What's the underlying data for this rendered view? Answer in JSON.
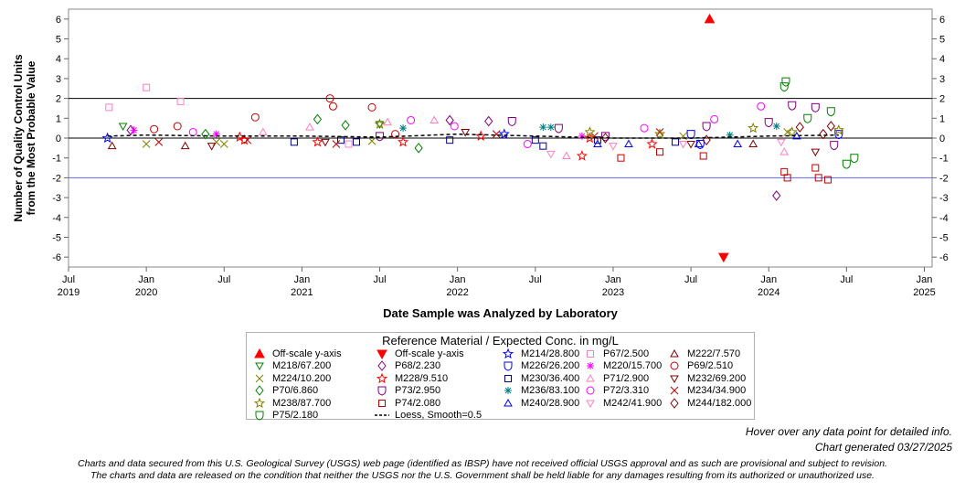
{
  "chart_data": {
    "type": "scatter",
    "ylabel_line1": "Number of Quality Control Units",
    "ylabel_line2": "from the Most Probable Value",
    "xlabel": "Date Sample was Analyzed by Laboratory",
    "ylim": [
      -6.5,
      6.5
    ],
    "yticks": [
      6,
      5,
      4,
      3,
      2,
      1,
      0,
      -1,
      -2,
      -3,
      -4,
      -5,
      -6
    ],
    "ytick_labels": [
      "6",
      "5",
      "4",
      "3",
      "2",
      "1",
      "0",
      "-1",
      "-2",
      "-3",
      "-4",
      "-5",
      "-6"
    ],
    "xlim": [
      2019.5,
      2025.05
    ],
    "xticks": [
      {
        "value": 2019.5,
        "line1": "Jul",
        "line2": "2019"
      },
      {
        "value": 2020.0,
        "line1": "Jan",
        "line2": "2020"
      },
      {
        "value": 2020.5,
        "line1": "Jul",
        "line2": ""
      },
      {
        "value": 2021.0,
        "line1": "Jan",
        "line2": "2021"
      },
      {
        "value": 2021.5,
        "line1": "Jul",
        "line2": ""
      },
      {
        "value": 2022.0,
        "line1": "Jan",
        "line2": "2022"
      },
      {
        "value": 2022.5,
        "line1": "Jul",
        "line2": ""
      },
      {
        "value": 2023.0,
        "line1": "Jan",
        "line2": "2023"
      },
      {
        "value": 2023.5,
        "line1": "Jul",
        "line2": ""
      },
      {
        "value": 2024.0,
        "line1": "Jan",
        "line2": "2024"
      },
      {
        "value": 2024.5,
        "line1": "Jul",
        "line2": ""
      },
      {
        "value": 2025.0,
        "line1": "Jan",
        "line2": "2025"
      }
    ],
    "reference_lines": [
      {
        "y": 2,
        "color": "#000000"
      },
      {
        "y": 0,
        "color": "#000000"
      },
      {
        "y": -2,
        "color": "#6464ff"
      }
    ],
    "legend_title": "Reference Material / Expected Conc. in mg/L",
    "legend": [
      {
        "label": "Off-scale y-axis",
        "symbol": "tri-up-filled",
        "color": "#ff0000"
      },
      {
        "label": "Off-scale y-axis",
        "symbol": "tri-down-filled",
        "color": "#ff0000"
      },
      {
        "label": "M214/28.800",
        "symbol": "star",
        "color": "#0000ff"
      },
      {
        "label": "P67/2.500",
        "symbol": "square",
        "color": "#ff80c0"
      },
      {
        "label": "M222/7.570",
        "symbol": "tri-up",
        "color": "#800000"
      },
      {
        "label": "M218/67.200",
        "symbol": "tri-down",
        "color": "#008000"
      },
      {
        "label": "P68/2.230",
        "symbol": "diamond",
        "color": "#800080"
      },
      {
        "label": "M226/26.200",
        "symbol": "shield",
        "color": "#0000ff"
      },
      {
        "label": "M220/15.700",
        "symbol": "asterisk",
        "color": "#ff00ff"
      },
      {
        "label": "P69/2.510",
        "symbol": "circle",
        "color": "#c00000"
      },
      {
        "label": "M224/10.200",
        "symbol": "x",
        "color": "#808000"
      },
      {
        "label": "M228/9.510",
        "symbol": "star",
        "color": "#ff0000"
      },
      {
        "label": "M230/36.400",
        "symbol": "square",
        "color": "#000080"
      },
      {
        "label": "P71/2.900",
        "symbol": "tri-up",
        "color": "#ff80c0"
      },
      {
        "label": "M232/69.200",
        "symbol": "tri-down",
        "color": "#800000"
      },
      {
        "label": "P70/6.860",
        "symbol": "diamond",
        "color": "#008000"
      },
      {
        "label": "P73/2.950",
        "symbol": "shield",
        "color": "#800080"
      },
      {
        "label": "M236/83.100",
        "symbol": "asterisk",
        "color": "#008080"
      },
      {
        "label": "P72/3.310",
        "symbol": "circle",
        "color": "#ff00ff"
      },
      {
        "label": "M234/34.900",
        "symbol": "x",
        "color": "#c00000"
      },
      {
        "label": "M238/87.700",
        "symbol": "star",
        "color": "#808000"
      },
      {
        "label": "P74/2.080",
        "symbol": "square",
        "color": "#c00000"
      },
      {
        "label": "M240/28.900",
        "symbol": "tri-up",
        "color": "#0000ff"
      },
      {
        "label": "M242/41.900",
        "symbol": "tri-down",
        "color": "#ff80c0"
      },
      {
        "label": "M244/182.000",
        "symbol": "diamond",
        "color": "#800000"
      },
      {
        "label": "P75/2.180",
        "symbol": "shield",
        "color": "#008000"
      },
      {
        "label": "Loess, Smooth=0.5",
        "symbol": "dash",
        "color": "#000000"
      }
    ],
    "offscale_points": [
      {
        "x": 2023.62,
        "y": 6.0,
        "symbol": "tri-up-filled",
        "color": "#ff0000"
      },
      {
        "x": 2023.71,
        "y": -6.0,
        "symbol": "tri-down-filled",
        "color": "#ff0000"
      }
    ],
    "loess": [
      {
        "x": 2019.75,
        "y": 0.1
      },
      {
        "x": 2020.0,
        "y": 0.15
      },
      {
        "x": 2020.5,
        "y": 0.1
      },
      {
        "x": 2021.0,
        "y": 0.1
      },
      {
        "x": 2021.5,
        "y": 0.05
      },
      {
        "x": 2022.0,
        "y": 0.2
      },
      {
        "x": 2022.5,
        "y": 0.1
      },
      {
        "x": 2023.0,
        "y": 0.0
      },
      {
        "x": 2023.5,
        "y": 0.0
      },
      {
        "x": 2024.0,
        "y": 0.1
      },
      {
        "x": 2024.45,
        "y": 0.15
      }
    ],
    "series": [
      {
        "name": "M214/28.800",
        "x": [
          2019.75,
          2022.3
        ],
        "y": [
          0.0,
          0.2
        ]
      },
      {
        "name": "P67/2.500",
        "x": [
          2019.76,
          2020.0,
          2020.22,
          2021.3
        ],
        "y": [
          1.55,
          2.55,
          1.85,
          -0.3
        ]
      },
      {
        "name": "M222/7.570",
        "x": [
          2019.78,
          2020.25,
          2023.9
        ],
        "y": [
          -0.4,
          -0.4,
          -0.3
        ]
      },
      {
        "name": "M218/67.200",
        "x": [
          2019.85,
          2021.5
        ],
        "y": [
          0.6,
          0.7
        ]
      },
      {
        "name": "P68/2.230",
        "x": [
          2019.9,
          2021.95,
          2022.2,
          2024.05
        ],
        "y": [
          0.4,
          0.9,
          0.85,
          -2.9
        ]
      },
      {
        "name": "M226/26.200",
        "x": [
          2023.5,
          2023.56,
          2024.45
        ],
        "y": [
          0.2,
          -0.3,
          0.2
        ]
      },
      {
        "name": "M220/15.700",
        "x": [
          2019.92,
          2020.45,
          2022.8
        ],
        "y": [
          0.4,
          0.2,
          0.1
        ]
      },
      {
        "name": "P69/2.510",
        "x": [
          2020.05,
          2020.2,
          2020.7,
          2021.18,
          2021.2,
          2021.45,
          2021.6
        ],
        "y": [
          0.45,
          0.6,
          1.05,
          2.0,
          1.6,
          1.55,
          0.2
        ]
      },
      {
        "name": "M224/10.200",
        "x": [
          2020.0,
          2020.45,
          2020.5,
          2021.45,
          2023.45,
          2024.12
        ],
        "y": [
          -0.3,
          -0.2,
          -0.3,
          -0.15,
          0.1,
          0.3
        ]
      },
      {
        "name": "M228/9.510",
        "x": [
          2020.6,
          2020.63,
          2021.1,
          2021.65,
          2022.15,
          2022.8,
          2022.85,
          2023.25
        ],
        "y": [
          0.05,
          -0.1,
          -0.2,
          -0.2,
          0.1,
          -0.9,
          0.0,
          -0.3
        ]
      },
      {
        "name": "M230/36.400",
        "x": [
          2020.95,
          2021.25,
          2021.35,
          2021.95,
          2022.5,
          2022.55,
          2022.9,
          2023.4
        ],
        "y": [
          -0.2,
          -0.1,
          -0.2,
          -0.1,
          -0.1,
          -0.4,
          -0.1,
          -0.2
        ]
      },
      {
        "name": "P71/2.900",
        "x": [
          2020.75,
          2021.05,
          2021.55,
          2021.85,
          2022.7,
          2024.1
        ],
        "y": [
          0.3,
          0.55,
          0.8,
          0.9,
          -0.9,
          -0.7
        ]
      },
      {
        "name": "M232/69.200",
        "x": [
          2020.42,
          2021.15,
          2022.05,
          2023.5,
          2024.3
        ],
        "y": [
          -0.4,
          -0.2,
          0.3,
          -0.3,
          -0.7
        ]
      },
      {
        "name": "P70/6.860",
        "x": [
          2020.38,
          2021.1,
          2021.28,
          2021.75
        ],
        "y": [
          0.2,
          0.95,
          0.65,
          -0.5
        ]
      },
      {
        "name": "P73/2.950",
        "x": [
          2021.5,
          2022.35,
          2022.65,
          2022.95,
          2023.6,
          2024.0,
          2024.15,
          2024.3,
          2024.42
        ],
        "y": [
          0.1,
          0.85,
          0.5,
          0.1,
          0.6,
          0.8,
          1.65,
          1.55,
          -0.35
        ]
      },
      {
        "name": "M236/83.100",
        "x": [
          2021.65,
          2022.55,
          2022.6,
          2023.75,
          2024.05
        ],
        "y": [
          0.5,
          0.55,
          0.55,
          0.15,
          0.6
        ]
      },
      {
        "name": "P72/3.310",
        "x": [
          2020.3,
          2021.7,
          2021.98,
          2022.45,
          2023.2,
          2023.65,
          2023.95
        ],
        "y": [
          0.3,
          0.9,
          0.6,
          -0.3,
          0.5,
          0.95,
          1.6
        ]
      },
      {
        "name": "M234/34.900",
        "x": [
          2020.08,
          2020.65,
          2021.22,
          2022.25,
          2022.88,
          2023.3
        ],
        "y": [
          -0.2,
          -0.1,
          -0.3,
          0.2,
          0.1,
          0.3
        ]
      },
      {
        "name": "M238/87.700",
        "x": [
          2021.5,
          2022.85,
          2023.3,
          2023.9,
          2024.15,
          2024.45
        ],
        "y": [
          0.7,
          0.3,
          0.2,
          0.5,
          0.3,
          0.4
        ]
      },
      {
        "name": "P74/2.080",
        "x": [
          2023.05,
          2023.3,
          2023.58,
          2024.1,
          2024.12,
          2024.3,
          2024.32,
          2024.38
        ],
        "y": [
          -1.0,
          -0.7,
          -0.9,
          -1.7,
          -2.0,
          -1.5,
          -2.0,
          -2.1
        ]
      },
      {
        "name": "M240/28.900",
        "x": [
          2022.9,
          2023.1,
          2023.55,
          2023.8,
          2024.18
        ],
        "y": [
          -0.3,
          -0.3,
          -0.3,
          -0.3,
          0.1
        ]
      },
      {
        "name": "M242/41.900",
        "x": [
          2022.6,
          2023.0,
          2023.45,
          2024.08
        ],
        "y": [
          -0.8,
          -0.4,
          -0.3,
          -0.2
        ]
      },
      {
        "name": "M244/182.000",
        "x": [
          2022.95,
          2023.6,
          2024.2,
          2024.35,
          2024.4
        ],
        "y": [
          0.0,
          -0.1,
          0.55,
          0.2,
          0.6
        ]
      },
      {
        "name": "P75/2.180",
        "x": [
          2024.1,
          2024.11,
          2024.25,
          2024.4,
          2024.5,
          2024.55
        ],
        "y": [
          2.6,
          2.85,
          1.0,
          1.35,
          -1.3,
          -1.0
        ]
      }
    ]
  },
  "footer": {
    "hover_note": "Hover over any data point for detailed info.",
    "generated": "Chart generated 03/27/2025",
    "disclaimer_line1": "Charts and data secured from this U.S. Geological Survey (USGS) web page (identified as IBSP) have not received official USGS approval and as such are provisional and subject to revision.",
    "disclaimer_line2": "The charts and data are released on the condition that neither the USGS nor the U.S. Government shall be held liable for any damages resulting from its authorized or unauthorized use."
  }
}
